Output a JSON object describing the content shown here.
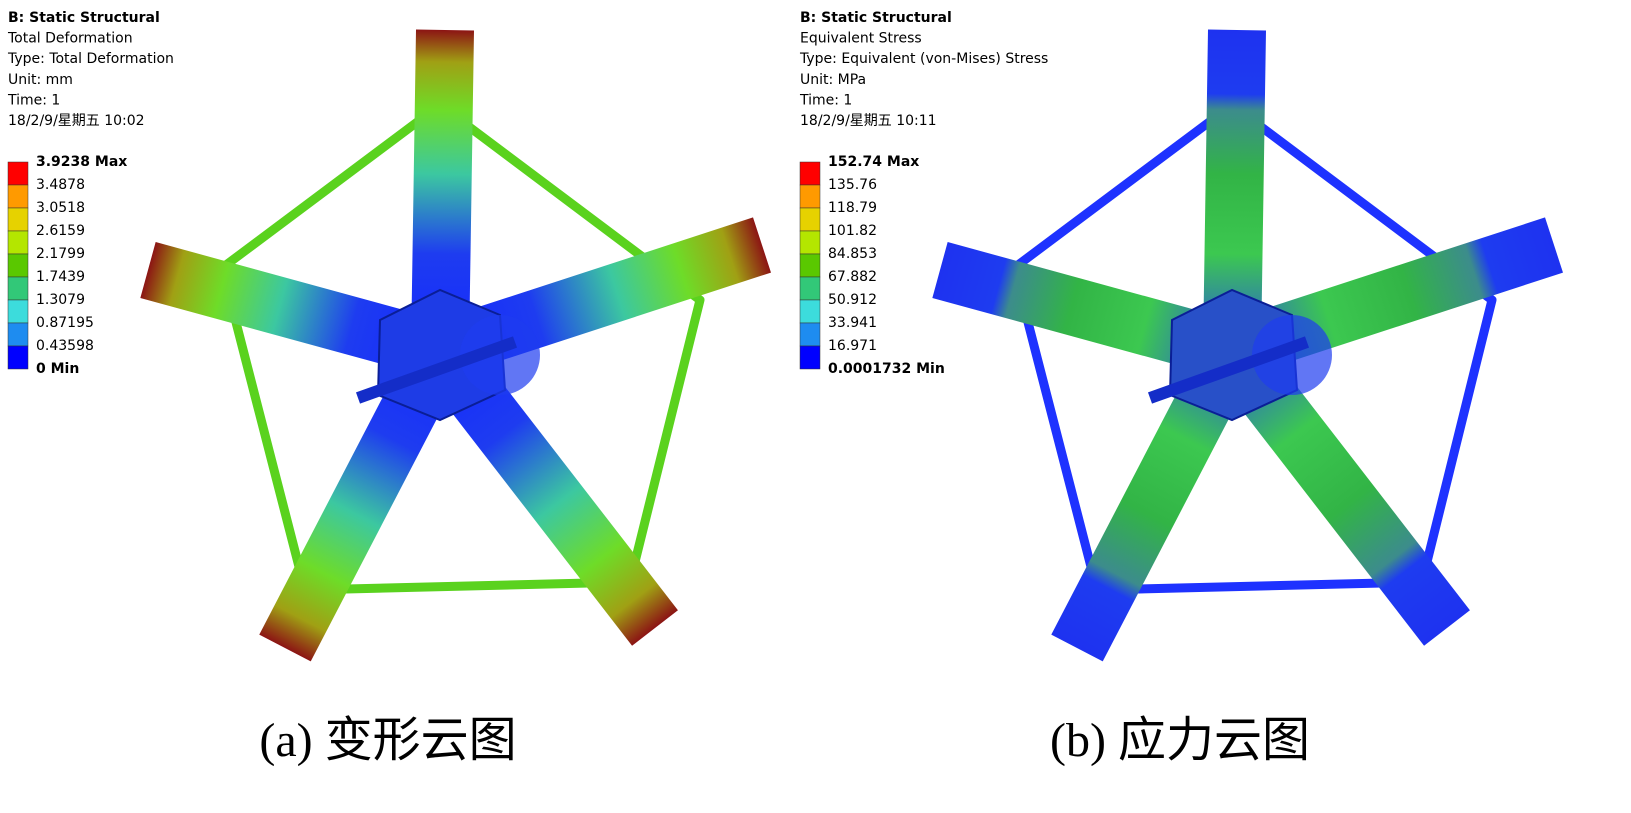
{
  "panels": [
    {
      "header": [
        "B: Static Structural",
        "Total Deformation",
        "Type: Total Deformation",
        "Unit: mm",
        "Time: 1",
        "18/2/9/星期五 10:02"
      ],
      "legend": [
        "3.9238 Max",
        "3.4878",
        "3.0518",
        "2.6159",
        "2.1799",
        "1.7439",
        "1.3079",
        "0.87195",
        "0.43598",
        "0 Min"
      ],
      "caption": "(a) 变形云图"
    },
    {
      "header": [
        "B: Static Structural",
        "Equivalent Stress",
        "Type: Equivalent (von-Mises) Stress",
        "Unit: MPa",
        "Time: 1",
        "18/2/9/星期五 10:11"
      ],
      "legend": [
        "152.74 Max",
        "135.76",
        "118.79",
        "101.82",
        "84.853",
        "67.882",
        "50.912",
        "33.941",
        "16.971",
        "0.0001732 Min"
      ],
      "caption": "(b) 应力云图"
    }
  ]
}
